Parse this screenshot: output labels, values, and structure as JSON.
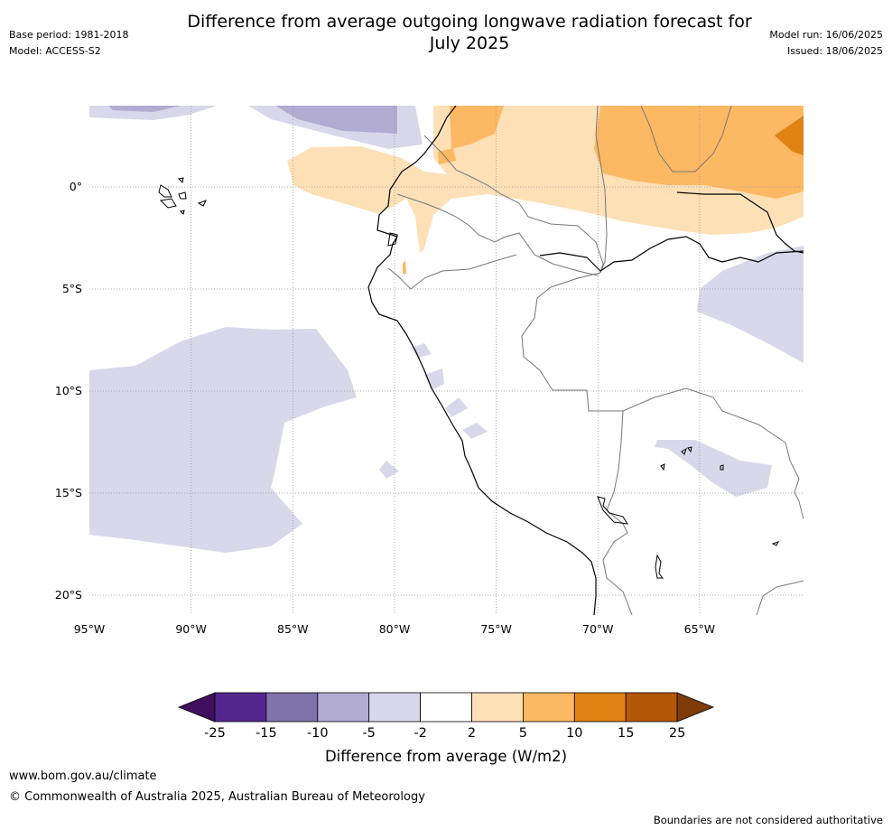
{
  "header": {
    "title_line1": "Difference from average outgoing longwave radiation forecast for",
    "title_line2": "July 2025",
    "base_period": "Base period: 1981-2018",
    "model": "Model: ACCESS-S2",
    "model_run": "Model run: 16/06/2025",
    "issued": "Issued: 18/06/2025"
  },
  "map": {
    "lon_ticks": [
      "95°W",
      "90°W",
      "85°W",
      "80°W",
      "75°W",
      "70°W",
      "65°W"
    ],
    "lat_ticks": [
      "0°",
      "5°S",
      "10°S",
      "15°S",
      "20°S"
    ]
  },
  "colorbar": {
    "label": "Difference from average (W/m2)",
    "ticks": [
      "-25",
      "-15",
      "-10",
      "-5",
      "-2",
      "2",
      "5",
      "10",
      "15",
      "25"
    ],
    "colors": [
      "#3f0f5e",
      "#54278f",
      "#8073ac",
      "#b2abd2",
      "#d8d8ea",
      "#ffffff",
      "#fee0b6",
      "#fdb863",
      "#e08214",
      "#b35806",
      "#7f3b08"
    ]
  },
  "footer": {
    "url": "www.bom.gov.au/climate",
    "copyright": "© Commonwealth of Australia 2025, Australian Bureau of Meteorology",
    "disclaimer": "Boundaries are not considered authoritative"
  }
}
